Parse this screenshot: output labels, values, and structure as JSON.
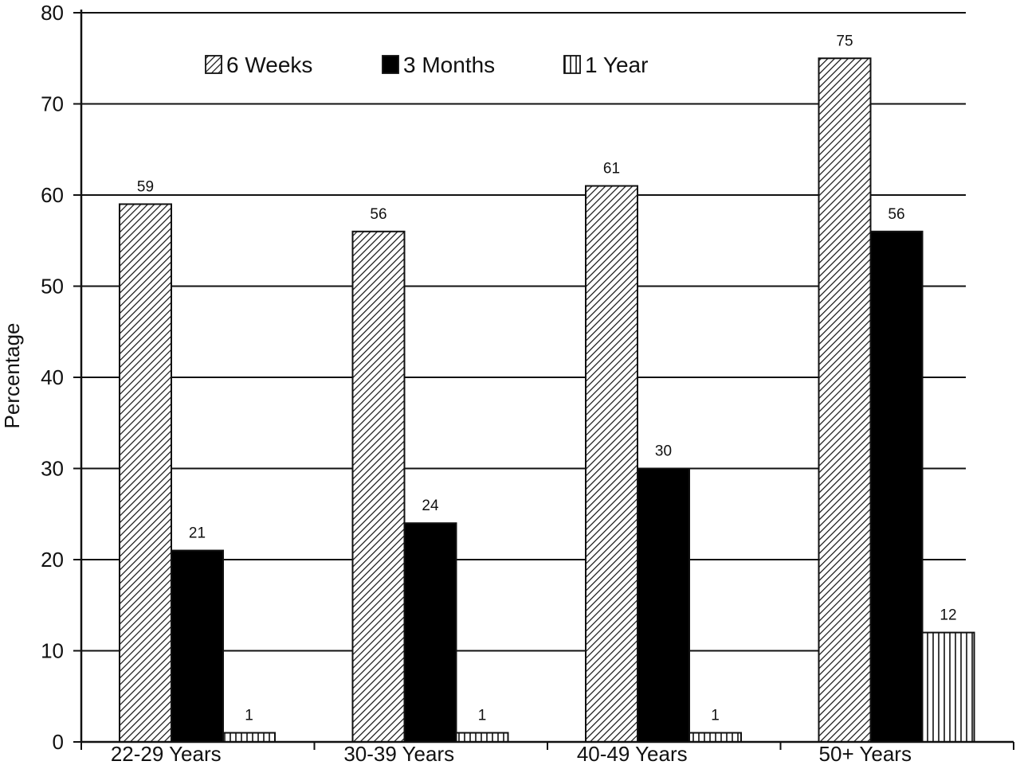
{
  "chart_data": {
    "type": "bar",
    "categories": [
      "22-29 Years",
      "30-39 Years",
      "40-49 Years",
      "50+ Years"
    ],
    "series": [
      {
        "name": "6 Weeks",
        "values": [
          59,
          56,
          61,
          75
        ],
        "pattern": "diagonal-hatch"
      },
      {
        "name": "3 Months",
        "values": [
          21,
          24,
          30,
          56
        ],
        "pattern": "solid-black"
      },
      {
        "name": "1 Year",
        "values": [
          1,
          1,
          1,
          12
        ],
        "pattern": "vertical-lines"
      }
    ],
    "data_labels": [
      [
        "59",
        "56",
        "61",
        "75"
      ],
      [
        "21",
        "24",
        "30",
        "56"
      ],
      [
        "1",
        "1",
        "1",
        "12"
      ]
    ],
    "ylabel": "Percentage",
    "ylim": [
      0,
      80
    ],
    "yticks": [
      0,
      10,
      20,
      30,
      40,
      50,
      60,
      70,
      80
    ],
    "grid": true,
    "legend_position": "top-center"
  }
}
